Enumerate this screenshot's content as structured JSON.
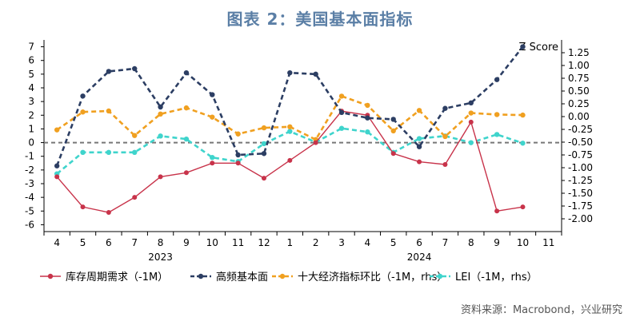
{
  "title": "图表 2：美国基本面指标",
  "source": "资料来源：Macrobond，兴业研究",
  "chart_data": {
    "type": "line",
    "categories": [
      "4",
      "5",
      "6",
      "7",
      "8",
      "9",
      "10",
      "11",
      "12",
      "1",
      "2",
      "3",
      "4",
      "5",
      "6",
      "7",
      "8",
      "9",
      "10",
      "11"
    ],
    "year_labels": [
      {
        "label": "2023",
        "start": 0,
        "end": 8
      },
      {
        "label": "2024",
        "start": 9,
        "end": 19
      }
    ],
    "left_axis": {
      "ylim": [
        -6.5,
        7.5
      ],
      "ticks": [
        7,
        6,
        5,
        4,
        3,
        2,
        1,
        0,
        -1,
        -2,
        -3,
        -4,
        -5,
        -6
      ]
    },
    "right_axis": {
      "label": "Z Score",
      "ylim": [
        -2.25,
        1.5
      ],
      "ticks": [
        "1.25",
        "1.00",
        "0.75",
        "0.50",
        "0.25",
        "0.00",
        "-0.25",
        "-0.50",
        "-0.75",
        "-1.00",
        "-1.25",
        "-1.50",
        "-1.75",
        "-2.00"
      ]
    },
    "series": [
      {
        "name": "库存周期需求（-1M）",
        "axis": "left",
        "color": "#c8334a",
        "style": "solid",
        "values": [
          -2.5,
          -4.7,
          -5.1,
          -4.0,
          -2.5,
          -2.2,
          -1.5,
          -1.5,
          -2.6,
          -1.3,
          0.0,
          2.3,
          2.0,
          -0.8,
          -1.4,
          -1.6,
          1.5,
          -5.0,
          -4.7,
          null
        ]
      },
      {
        "name": "高频基本面",
        "axis": "left",
        "color": "#2c3e63",
        "style": "dashed",
        "values": [
          -1.7,
          3.4,
          5.2,
          5.4,
          2.6,
          5.1,
          3.5,
          -0.9,
          -0.8,
          5.1,
          5.0,
          2.2,
          1.8,
          1.7,
          -0.3,
          2.5,
          2.9,
          4.6,
          7.0,
          null
        ]
      },
      {
        "name": "十大经济指标环比（-1M，rhs）",
        "axis": "right",
        "color": "#f0a020",
        "style": "dashed",
        "values": [
          -0.26,
          0.09,
          0.11,
          -0.37,
          0.05,
          0.17,
          -0.01,
          -0.34,
          -0.22,
          -0.2,
          -0.45,
          0.4,
          0.22,
          -0.28,
          0.12,
          -0.39,
          0.07,
          0.04,
          0.03,
          null
        ]
      },
      {
        "name": "LEI（-1M，rhs）",
        "axis": "right",
        "color": "#3fd4cc",
        "style": "dashed",
        "values": [
          -1.12,
          -0.7,
          -0.7,
          -0.7,
          -0.38,
          -0.44,
          -0.8,
          -0.88,
          -0.53,
          -0.29,
          -0.5,
          -0.23,
          -0.3,
          -0.7,
          -0.43,
          -0.38,
          -0.51,
          -0.35,
          -0.52,
          null
        ]
      }
    ],
    "zero_line": 0,
    "grid": false
  }
}
